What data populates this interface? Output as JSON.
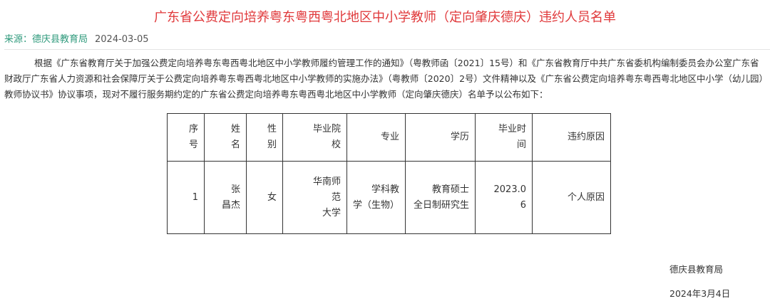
{
  "title": "广东省公费定向培养粤东粤西粤北地区中小学教师（定向肇庆德庆）违约人员名单",
  "meta": {
    "source": "来源：德庆县教育局",
    "date": "2024-03-05"
  },
  "paragraph": "根据《广东省教育厅关于加强公费定向培养粤东粤西粤北地区中小学教师履约管理工作的通知》（粤教师函〔2021〕15号）和《广东省教育厅中共广东省委机构编制委员会办公室广东省财政厅广东省人力资源和社会保障厅关于公费定向培养粤东粤西粤北地区中小学教师的实施办法》（粤教师〔2020〕2号）文件精神以及《广东省公费定向培养粤东粤西粤北地区中小学（幼儿园）教师协议书》协议事项，现对不履行服务期约定的广东省公费定向培养粤东粤西粤北地区中小学教师（定向肇庆德庆）名单予以公布如下：",
  "table": {
    "headers": [
      "序\n号",
      "姓\n名",
      "性\n别",
      "毕业院\n校",
      "专业",
      "学历",
      "毕业时\n间",
      "违约原因"
    ],
    "rows": [
      [
        "1",
        "张\n昌杰",
        "女",
        "华南师\n范\n大学",
        "学科教\n学（生物）",
        "教育硕士\n全日制研究生",
        "2023.0\n6",
        "个人原因"
      ]
    ]
  },
  "footer": {
    "org": "德庆县教育局",
    "date": "2024年3月4日"
  }
}
